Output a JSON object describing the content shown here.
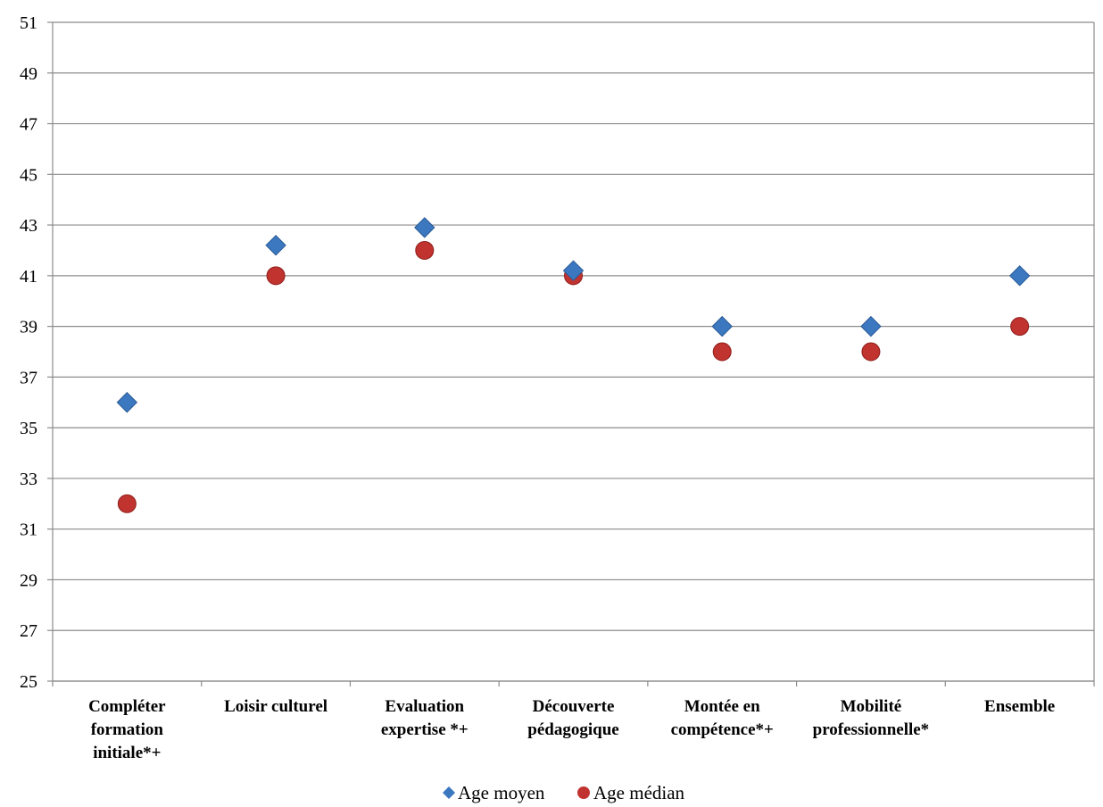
{
  "chart_data": {
    "type": "scatter",
    "categories": [
      [
        "Compléter",
        "formation",
        "initiale*+"
      ],
      [
        "Loisir culturel"
      ],
      [
        "Evaluation",
        "expertise *+"
      ],
      [
        "Découverte",
        "pédagogique"
      ],
      [
        "Montée en",
        "compétence*+"
      ],
      [
        "Mobilité",
        "professionnelle*"
      ],
      [
        "Ensemble"
      ]
    ],
    "series": [
      {
        "name": "Age moyen",
        "marker": "diamond",
        "color": "#3c78c0",
        "values": [
          36,
          42.2,
          42.9,
          41.2,
          39,
          39,
          41
        ]
      },
      {
        "name": "Age médian",
        "marker": "circle",
        "color": "#c0332f",
        "values": [
          32,
          41,
          42,
          41,
          38,
          38,
          39
        ]
      }
    ],
    "ylim": [
      25,
      51
    ],
    "yticks": [
      25,
      27,
      29,
      31,
      33,
      35,
      37,
      39,
      41,
      43,
      45,
      47,
      49,
      51
    ],
    "grid": true,
    "legend": "bottom"
  }
}
